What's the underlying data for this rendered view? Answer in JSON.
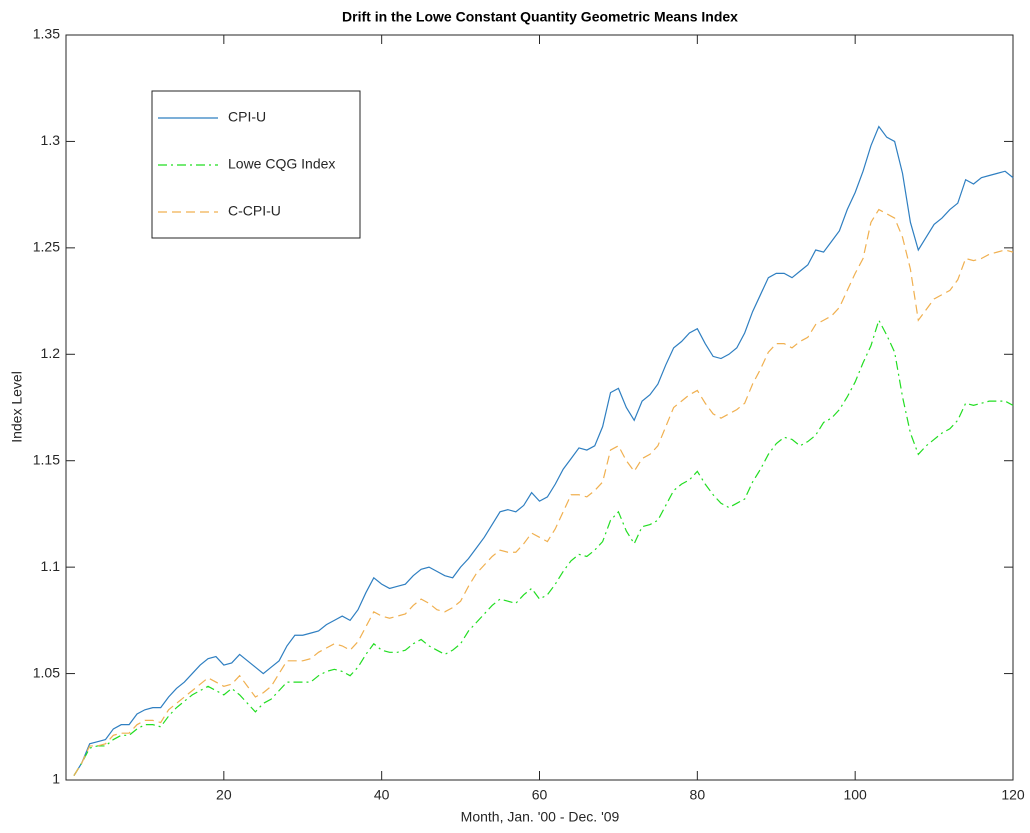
{
  "chart_data": {
    "type": "line",
    "title": "Drift in the Lowe Constant Quantity Geometric Means Index",
    "x_label": "Month, Jan. '00 - Dec. '09",
    "y_label": "Index Level",
    "legend": "northwest",
    "grid": false,
    "xlim": [
      0,
      120
    ],
    "xticks": [
      20,
      40,
      60,
      80,
      100,
      120
    ],
    "ylim": [
      1,
      1.35
    ],
    "yticks": [
      1,
      1.05,
      1.1,
      1.15,
      1.2,
      1.25,
      1.3,
      1.35
    ],
    "x": [
      1,
      2,
      3,
      4,
      5,
      6,
      7,
      8,
      9,
      10,
      11,
      12,
      13,
      14,
      15,
      16,
      17,
      18,
      19,
      20,
      21,
      22,
      23,
      24,
      25,
      26,
      27,
      28,
      29,
      30,
      31,
      32,
      33,
      34,
      35,
      36,
      37,
      38,
      39,
      40,
      41,
      42,
      43,
      44,
      45,
      46,
      47,
      48,
      49,
      50,
      51,
      52,
      53,
      54,
      55,
      56,
      57,
      58,
      59,
      60,
      61,
      62,
      63,
      64,
      65,
      66,
      67,
      68,
      69,
      70,
      71,
      72,
      73,
      74,
      75,
      76,
      77,
      78,
      79,
      80,
      81,
      82,
      83,
      84,
      85,
      86,
      87,
      88,
      89,
      90,
      91,
      92,
      93,
      94,
      95,
      96,
      97,
      98,
      99,
      100,
      101,
      102,
      103,
      104,
      105,
      106,
      107,
      108,
      109,
      110,
      111,
      112,
      113,
      114,
      115,
      116,
      117,
      118,
      119,
      120
    ],
    "series": [
      {
        "name": "CPI-U",
        "color": "#2f7fc1",
        "style": "solid",
        "values": [
          1.002,
          1.008,
          1.017,
          1.018,
          1.019,
          1.024,
          1.026,
          1.026,
          1.031,
          1.033,
          1.034,
          1.034,
          1.039,
          1.043,
          1.046,
          1.05,
          1.054,
          1.057,
          1.058,
          1.054,
          1.055,
          1.059,
          1.056,
          1.053,
          1.05,
          1.053,
          1.056,
          1.063,
          1.068,
          1.068,
          1.069,
          1.07,
          1.073,
          1.075,
          1.077,
          1.075,
          1.08,
          1.088,
          1.095,
          1.092,
          1.09,
          1.091,
          1.092,
          1.096,
          1.099,
          1.1,
          1.098,
          1.096,
          1.095,
          1.1,
          1.104,
          1.109,
          1.114,
          1.12,
          1.126,
          1.127,
          1.126,
          1.129,
          1.135,
          1.131,
          1.133,
          1.139,
          1.146,
          1.151,
          1.156,
          1.155,
          1.157,
          1.166,
          1.182,
          1.184,
          1.175,
          1.169,
          1.178,
          1.181,
          1.186,
          1.195,
          1.203,
          1.206,
          1.21,
          1.212,
          1.205,
          1.199,
          1.198,
          1.2,
          1.203,
          1.21,
          1.22,
          1.228,
          1.236,
          1.238,
          1.238,
          1.236,
          1.239,
          1.242,
          1.249,
          1.248,
          1.253,
          1.258,
          1.268,
          1.276,
          1.286,
          1.298,
          1.307,
          1.302,
          1.3,
          1.285,
          1.262,
          1.249,
          1.255,
          1.261,
          1.264,
          1.268,
          1.271,
          1.282,
          1.28,
          1.283,
          1.284,
          1.285,
          1.286,
          1.283
        ]
      },
      {
        "name": "Lowe CQG Index",
        "color": "#22dd22",
        "style": "dashdot",
        "values": [
          1.002,
          1.008,
          1.015,
          1.016,
          1.016,
          1.019,
          1.021,
          1.021,
          1.024,
          1.026,
          1.026,
          1.025,
          1.03,
          1.034,
          1.037,
          1.04,
          1.042,
          1.044,
          1.042,
          1.04,
          1.043,
          1.04,
          1.036,
          1.032,
          1.036,
          1.038,
          1.042,
          1.046,
          1.046,
          1.046,
          1.046,
          1.049,
          1.051,
          1.052,
          1.051,
          1.049,
          1.053,
          1.059,
          1.064,
          1.061,
          1.06,
          1.06,
          1.061,
          1.064,
          1.066,
          1.063,
          1.061,
          1.059,
          1.061,
          1.064,
          1.07,
          1.074,
          1.078,
          1.082,
          1.085,
          1.084,
          1.083,
          1.087,
          1.09,
          1.085,
          1.087,
          1.092,
          1.098,
          1.103,
          1.106,
          1.105,
          1.108,
          1.112,
          1.122,
          1.126,
          1.117,
          1.111,
          1.119,
          1.12,
          1.122,
          1.129,
          1.136,
          1.139,
          1.141,
          1.145,
          1.139,
          1.134,
          1.13,
          1.128,
          1.13,
          1.132,
          1.14,
          1.146,
          1.153,
          1.158,
          1.161,
          1.16,
          1.157,
          1.159,
          1.162,
          1.168,
          1.17,
          1.174,
          1.18,
          1.187,
          1.196,
          1.204,
          1.216,
          1.209,
          1.201,
          1.18,
          1.163,
          1.153,
          1.157,
          1.16,
          1.163,
          1.165,
          1.169,
          1.177,
          1.176,
          1.177,
          1.178,
          1.178,
          1.178,
          1.176
        ]
      },
      {
        "name": "C-CPI-U",
        "color": "#f0b050",
        "style": "dashed",
        "values": [
          1.002,
          1.008,
          1.016,
          1.016,
          1.017,
          1.021,
          1.022,
          1.022,
          1.026,
          1.028,
          1.028,
          1.027,
          1.033,
          1.036,
          1.039,
          1.042,
          1.045,
          1.048,
          1.046,
          1.044,
          1.045,
          1.049,
          1.044,
          1.039,
          1.041,
          1.044,
          1.05,
          1.056,
          1.056,
          1.056,
          1.057,
          1.06,
          1.062,
          1.064,
          1.063,
          1.061,
          1.065,
          1.072,
          1.079,
          1.077,
          1.076,
          1.077,
          1.078,
          1.082,
          1.085,
          1.083,
          1.08,
          1.079,
          1.081,
          1.084,
          1.091,
          1.097,
          1.101,
          1.105,
          1.108,
          1.107,
          1.107,
          1.111,
          1.116,
          1.114,
          1.112,
          1.118,
          1.126,
          1.134,
          1.134,
          1.133,
          1.136,
          1.14,
          1.155,
          1.157,
          1.15,
          1.145,
          1.151,
          1.153,
          1.157,
          1.166,
          1.175,
          1.178,
          1.181,
          1.183,
          1.177,
          1.172,
          1.17,
          1.172,
          1.174,
          1.177,
          1.186,
          1.193,
          1.201,
          1.205,
          1.205,
          1.203,
          1.206,
          1.208,
          1.214,
          1.216,
          1.218,
          1.222,
          1.23,
          1.238,
          1.245,
          1.262,
          1.268,
          1.266,
          1.264,
          1.255,
          1.24,
          1.216,
          1.221,
          1.226,
          1.228,
          1.23,
          1.235,
          1.245,
          1.244,
          1.245,
          1.247,
          1.248,
          1.249,
          1.248
        ]
      }
    ]
  }
}
